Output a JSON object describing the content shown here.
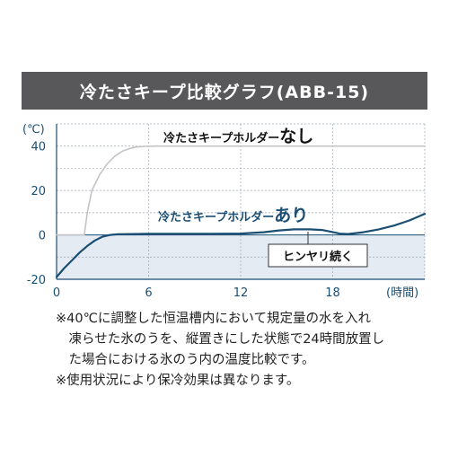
{
  "title": "冷たさキープ比較グラフ(ABB-15)",
  "notes": [
    "※40℃に調整した恒温槽内において規定量の水を入れ",
    "　凍らせた氷のうを、縦置きにした状態で24時間放置し",
    "　た場合における氷のう内の温度比較です。",
    "※使用状況により保冷効果は異なります。"
  ],
  "colors": {
    "title_bg": "#58585a",
    "without_line": "#c4c4c4",
    "with_line": "#1a4e73",
    "band_fill": "#e4ebf3",
    "axis_text": "#1a4e73"
  },
  "chart_data": {
    "type": "line",
    "ylabel": "(℃)",
    "xlabel": "(時間)",
    "xlim": [
      0,
      24
    ],
    "ylim": [
      -20,
      50
    ],
    "x_ticks": [
      0,
      6,
      12,
      18
    ],
    "y_ticks": [
      -20,
      0,
      20,
      40
    ],
    "grid": true,
    "series": [
      {
        "name": "冷たさキープホルダーなし",
        "name_main": "冷たさキープホルダー",
        "name_emph": "なし",
        "x": [
          0,
          1.8,
          2.0,
          2.3,
          2.8,
          3.3,
          3.8,
          4.3,
          4.8,
          5.2,
          5.8,
          6.5,
          8,
          24
        ],
        "y": [
          0,
          0,
          10,
          20,
          27,
          32,
          35.5,
          37.8,
          39,
          39.6,
          39.9,
          40,
          40,
          40
        ]
      },
      {
        "name": "冷たさキープホルダーあり",
        "name_main": "冷たさキープホルダー",
        "name_emph": "あり",
        "x": [
          0,
          0.5,
          1,
          1.5,
          2,
          2.5,
          3,
          3.5,
          4,
          5,
          6,
          8,
          10,
          12,
          13.5,
          14.5,
          15.5,
          16.5,
          17.3,
          18,
          18.5,
          19,
          20,
          21,
          22,
          23,
          24
        ],
        "y": [
          -19,
          -15,
          -11.5,
          -8,
          -5,
          -2.5,
          -0.8,
          0,
          0.3,
          0.4,
          0.5,
          0.5,
          0.5,
          0.6,
          1.2,
          2,
          2.5,
          2.5,
          2.2,
          1.3,
          0.5,
          0.4,
          1.2,
          2.5,
          4.2,
          6.5,
          9.5
        ]
      }
    ],
    "annotation": "ヒンヤリ続く"
  }
}
